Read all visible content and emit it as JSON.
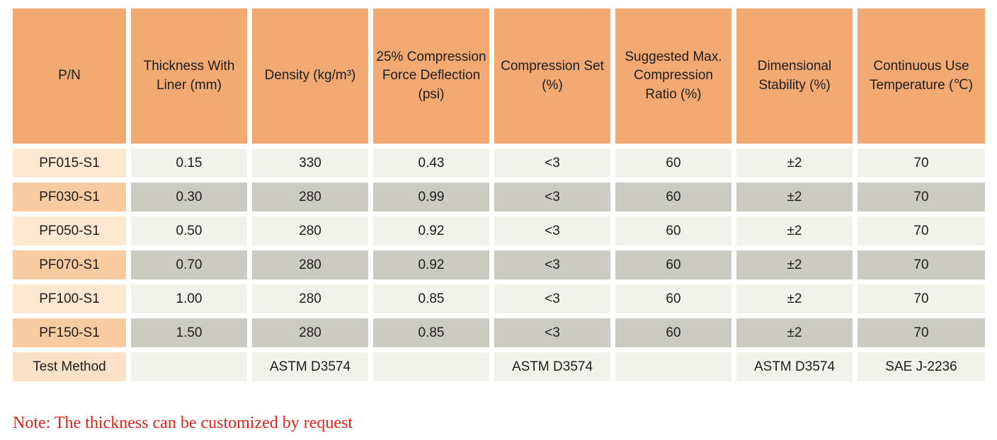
{
  "table": {
    "columns": [
      "P/N",
      "Thickness With Liner (mm)",
      "Density (kg/m³)",
      "25% Compression Force Deflection (psi)",
      "Compression Set (%)",
      "Suggested Max. Compression Ratio (%)",
      "Dimensional Stability (%)",
      "Continuous Use Temperature (℃)"
    ],
    "rows": [
      {
        "pn": "PF015-S1",
        "shade": "light",
        "values": [
          "0.15",
          "330",
          "0.43",
          "<3",
          "60",
          "±2",
          "70"
        ]
      },
      {
        "pn": "PF030-S1",
        "shade": "dark",
        "values": [
          "0.30",
          "280",
          "0.99",
          "<3",
          "60",
          "±2",
          "70"
        ]
      },
      {
        "pn": "PF050-S1",
        "shade": "light",
        "values": [
          "0.50",
          "280",
          "0.92",
          "<3",
          "60",
          "±2",
          "70"
        ]
      },
      {
        "pn": "PF070-S1",
        "shade": "dark",
        "values": [
          "0.70",
          "280",
          "0.92",
          "<3",
          "60",
          "±2",
          "70"
        ]
      },
      {
        "pn": "PF100-S1",
        "shade": "light",
        "values": [
          "1.00",
          "280",
          "0.85",
          "<3",
          "60",
          "±2",
          "70"
        ]
      },
      {
        "pn": "PF150-S1",
        "shade": "dark",
        "values": [
          "1.50",
          "280",
          "0.85",
          "<3",
          "60",
          "±2",
          "70"
        ]
      },
      {
        "pn": "Test Method",
        "shade": "test",
        "values": [
          "",
          "ASTM D3574",
          "",
          "ASTM D3574",
          "",
          "ASTM D3574",
          "SAE J-2236"
        ]
      }
    ]
  },
  "note": {
    "text": "Note: The thickness can be customized by request"
  },
  "colors": {
    "header_orange": "#f3aa72",
    "pn_light_peach": "#fde8d0",
    "pn_dark_peach": "#f8cba0",
    "row_light": "#f2f2ec",
    "row_dark": "#cbcbc3",
    "note_red": "#e32119",
    "gap_white": "#ffffff",
    "text_dark": "#1d1d1d"
  }
}
